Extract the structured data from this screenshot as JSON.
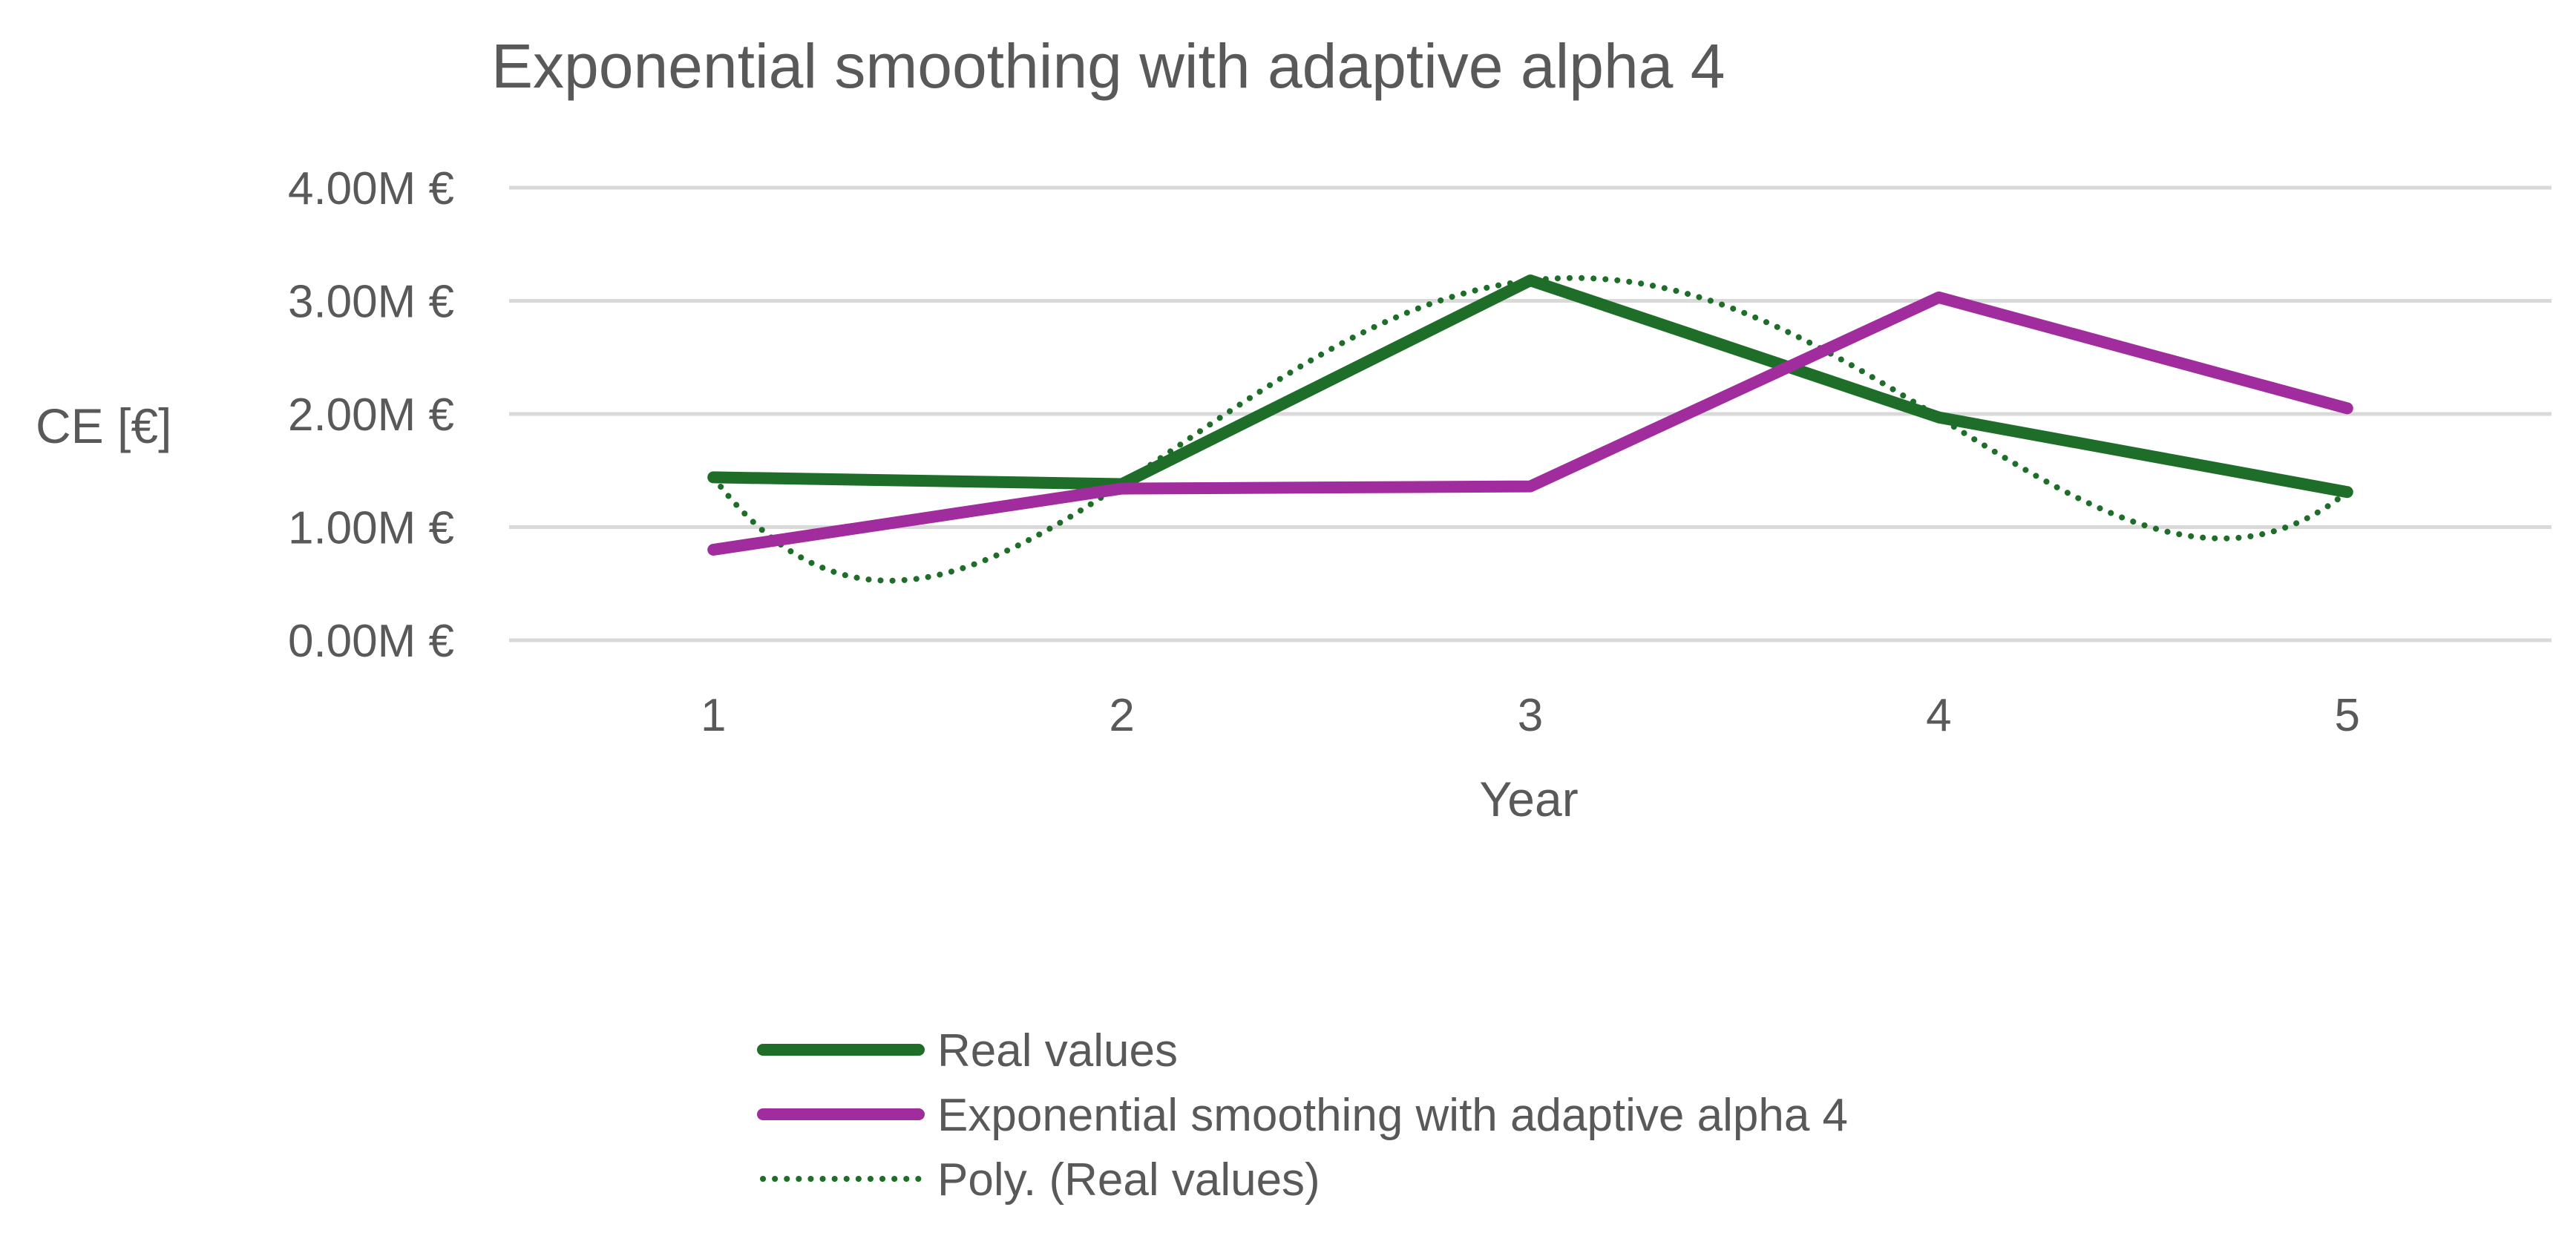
{
  "chart_data": {
    "type": "line",
    "title": "Exponential smoothing with adaptive alpha 4",
    "xlabel": "Year",
    "ylabel": "CE [€]",
    "categories": [
      "1",
      "2",
      "3",
      "4",
      "5"
    ],
    "ylim": [
      0,
      4000000
    ],
    "yticks": [
      {
        "value": 0,
        "label": "0.00M €"
      },
      {
        "value": 1000000,
        "label": "1.00M €"
      },
      {
        "value": 2000000,
        "label": "2.00M €"
      },
      {
        "value": 3000000,
        "label": "3.00M €"
      },
      {
        "value": 4000000,
        "label": "4.00M €"
      }
    ],
    "grid": true,
    "legend_position": "bottom",
    "series": [
      {
        "name": "Real values",
        "color": "#1e6e2a",
        "style": "solid",
        "values": [
          1440000,
          1380000,
          3180000,
          1970000,
          1310000
        ]
      },
      {
        "name": "Exponential smoothing with adaptive alpha 4",
        "color": "#a12c9d",
        "style": "solid",
        "values": [
          800000,
          1340000,
          1360000,
          3030000,
          2050000
        ]
      },
      {
        "name": "Poly. (Real values)",
        "color": "#1e6e2a",
        "style": "dotted",
        "trendline_of": "Real values",
        "polynomial_order": 4,
        "values": [
          1440000,
          1380000,
          3180000,
          1970000,
          1310000
        ]
      }
    ]
  }
}
